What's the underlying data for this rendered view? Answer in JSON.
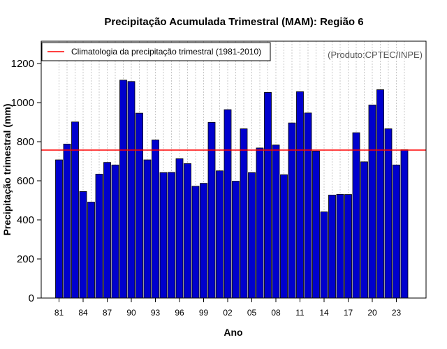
{
  "chart_data": {
    "type": "bar",
    "title": "Precipitação Acumulada Trimestral (MAM): Região 6",
    "xlabel": "Ano",
    "ylabel": "Precipitação trimestral (mm)",
    "credit": "(Produto:CPTEC/INPE)",
    "legend": {
      "label": "Climatologia da precipitação trimestral (1981-2010)",
      "color": "#ff0000",
      "placement": "top-left"
    },
    "climatology": 757,
    "ylim": [
      0,
      1300
    ],
    "yticks": [
      0,
      200,
      400,
      600,
      800,
      1000,
      1200
    ],
    "bar_color": "#0000cd",
    "grid": "vertical dotted",
    "years": [
      1981,
      1982,
      1983,
      1984,
      1985,
      1986,
      1987,
      1988,
      1989,
      1990,
      1991,
      1992,
      1993,
      1994,
      1995,
      1996,
      1997,
      1998,
      1999,
      2000,
      2001,
      2002,
      2003,
      2004,
      2005,
      2006,
      2007,
      2008,
      2009,
      2010,
      2011,
      2012,
      2013,
      2014,
      2015,
      2016,
      2017,
      2018,
      2019,
      2020,
      2021,
      2022,
      2023,
      2024
    ],
    "values": [
      707,
      788,
      901,
      545,
      491,
      634,
      694,
      681,
      1115,
      1108,
      946,
      707,
      809,
      642,
      643,
      713,
      688,
      572,
      587,
      899,
      651,
      964,
      598,
      866,
      642,
      768,
      1052,
      783,
      631,
      896,
      1056,
      947,
      752,
      441,
      527,
      531,
      530,
      846,
      697,
      988,
      1066,
      866,
      681,
      759
    ],
    "xtick_labels": [
      "81",
      "84",
      "87",
      "90",
      "93",
      "96",
      "99",
      "02",
      "05",
      "08",
      "11",
      "14",
      "17",
      "20",
      "23"
    ],
    "xtick_years": [
      1981,
      1984,
      1987,
      1990,
      1993,
      1996,
      1999,
      2002,
      2005,
      2008,
      2011,
      2014,
      2017,
      2020,
      2023
    ]
  }
}
